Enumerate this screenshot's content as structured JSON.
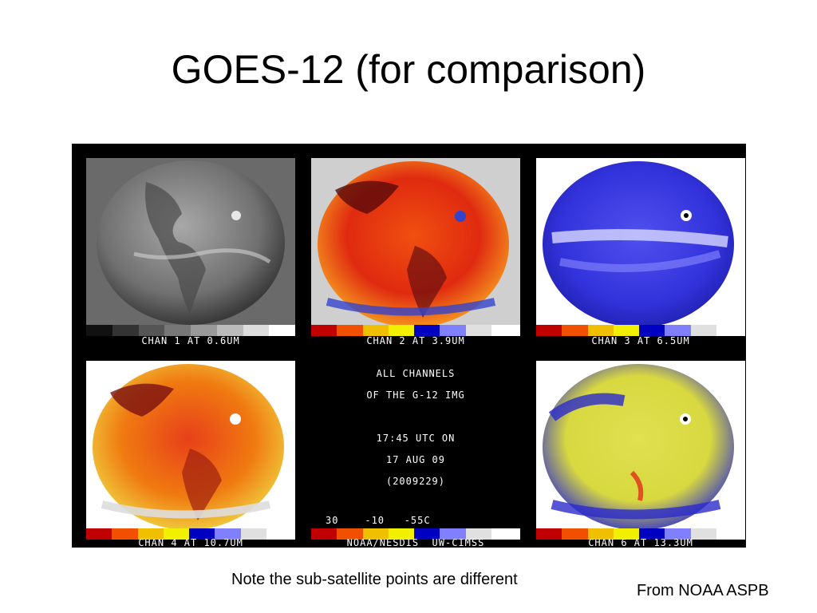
{
  "slide": {
    "title": "GOES-12 (for comparison)",
    "note": "Note the sub-satellite points are different",
    "source": "From NOAA ASPB"
  },
  "panels": {
    "chan1": "CHAN 1 AT 0.6UM",
    "chan2": "CHAN 2 AT 3.9UM",
    "chan3": "CHAN 3 AT 6.5UM",
    "chan4": "CHAN 4 AT 10.7UM",
    "chan6": "CHAN 6 AT 13.3UM"
  },
  "center_info": {
    "line1": "ALL CHANNELS",
    "line2": "OF THE G-12 IMG",
    "line3": "17:45 UTC ON",
    "line4": "17 AUG 09",
    "line5": "(2009229)",
    "scale_labels": "30    -10   -55C",
    "credit": "NOAA/NESDIS  UW-CIMSS"
  },
  "colors": {
    "vis_gray": "#8a8a8a",
    "ir_red": "#e02a10",
    "ir_orange": "#f07a10",
    "wv_blue": "#3333dd",
    "co2_yellow": "#d8d840"
  }
}
